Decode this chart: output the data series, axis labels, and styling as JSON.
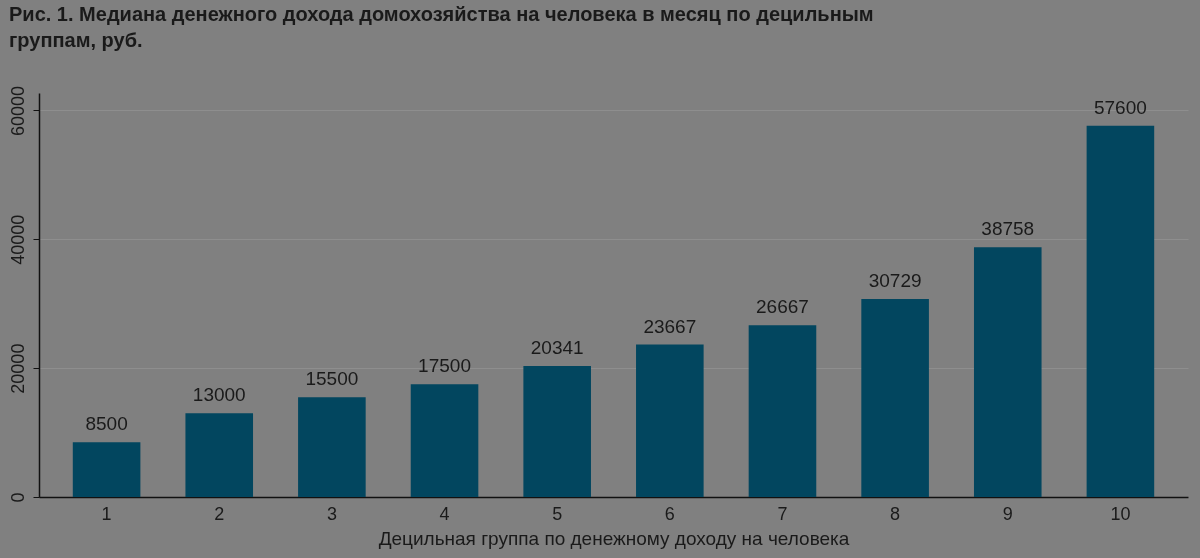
{
  "chart_data": {
    "type": "bar",
    "title": "Рис. 1. Медиана денежного дохода домохозяйства на человека в месяц по децильным группам, руб.",
    "xlabel": "Децильная группа по денежному доходу на человека",
    "categories": [
      "1",
      "2",
      "3",
      "4",
      "5",
      "6",
      "7",
      "8",
      "9",
      "10"
    ],
    "values": [
      8500,
      13000,
      15500,
      17500,
      20341,
      23667,
      26667,
      30729,
      38758,
      57600
    ],
    "color": "#02465f",
    "ylim": [
      0,
      62700
    ],
    "yticks": [
      0,
      20000,
      40000,
      60000
    ],
    "grid": "y",
    "data_labels": true
  }
}
